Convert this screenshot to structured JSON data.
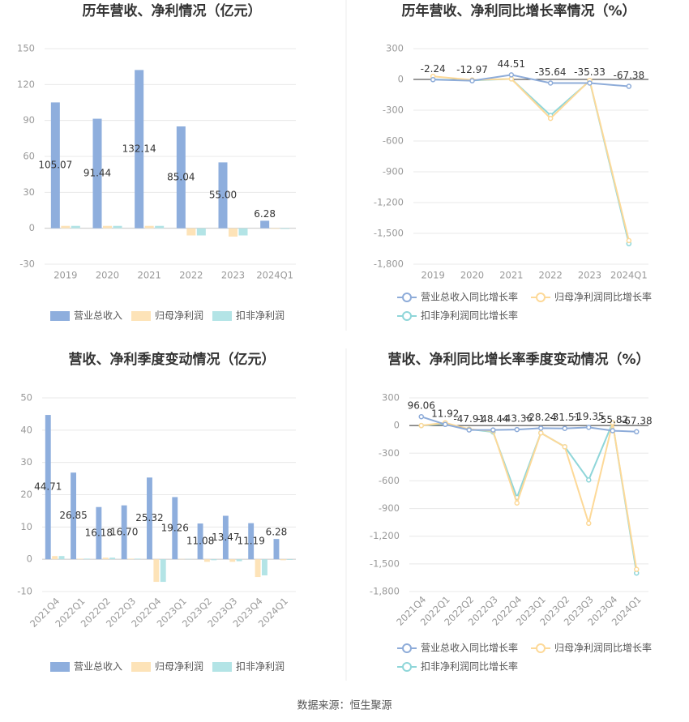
{
  "chart_data": [
    {
      "type": "bar",
      "title": "历年营收、净利情况（亿元）",
      "categories": [
        "2019",
        "2020",
        "2021",
        "2022",
        "2023",
        "2024Q1"
      ],
      "series": [
        {
          "name": "营业总收入",
          "color": "#8eaedd",
          "values": [
            105.07,
            91.44,
            132.14,
            85.04,
            55.0,
            6.28
          ],
          "value_labels": [
            "105.07",
            "91.44",
            "132.14",
            "85.04",
            "55.00",
            "6.28"
          ]
        },
        {
          "name": "归母净利润",
          "color": "#fde3b8",
          "values": [
            2,
            2,
            2,
            -6,
            -7,
            -0.5
          ]
        },
        {
          "name": "扣非净利润",
          "color": "#b3e4e6",
          "values": [
            2,
            2,
            2,
            -6,
            -6,
            -0.6
          ]
        }
      ],
      "ylim": [
        -30,
        150
      ],
      "yticks": [
        -30,
        0,
        30,
        60,
        90,
        120,
        150
      ],
      "grid": true
    },
    {
      "type": "line",
      "title": "历年营收、净利同比增长率情况（%）",
      "categories": [
        "2019",
        "2020",
        "2021",
        "2022",
        "2023",
        "2024Q1"
      ],
      "series": [
        {
          "name": "营业总收入同比增长率",
          "color": "#8eacd9",
          "values": [
            -2.24,
            -12.97,
            44.51,
            -35.64,
            -35.33,
            -67.38
          ],
          "data_labels": true
        },
        {
          "name": "归母净利润同比增长率",
          "color": "#fdd998",
          "values": [
            30,
            -5,
            5,
            -380,
            -10,
            -1570
          ]
        },
        {
          "name": "扣非净利润同比增长率",
          "color": "#8fd6d9",
          "values": [
            0,
            -10,
            5,
            -350,
            -15,
            -1600
          ]
        }
      ],
      "ylim": [
        -1800,
        300
      ],
      "yticks": [
        {
          "value": -1800,
          "label": "-1,800"
        },
        {
          "value": -1500,
          "label": "-1,500"
        },
        {
          "value": -1200,
          "label": "-1,200"
        },
        -900,
        -600,
        -300,
        0,
        300
      ],
      "grid": true
    },
    {
      "type": "bar",
      "title": "营收、净利季度变动情况（亿元）",
      "categories": [
        "2021Q4",
        "2022Q1",
        "2022Q2",
        "2022Q3",
        "2022Q4",
        "2023Q1",
        "2023Q2",
        "2023Q3",
        "2023Q4",
        "2024Q1"
      ],
      "series": [
        {
          "name": "营业总收入",
          "color": "#8eaedd",
          "values": [
            44.71,
            26.85,
            16.18,
            16.7,
            25.32,
            19.26,
            11.08,
            13.47,
            11.19,
            6.28
          ],
          "value_labels": [
            "44.71",
            "26.85",
            "16.18",
            "16.70",
            "25.32",
            "19.26",
            "11.08",
            "13.47",
            "11.19",
            "6.28"
          ]
        },
        {
          "name": "归母净利润",
          "color": "#fde3b8",
          "values": [
            1,
            0.2,
            0.5,
            0.2,
            -7,
            0.1,
            -0.8,
            -0.8,
            -5.5,
            -0.3
          ]
        },
        {
          "name": "扣非净利润",
          "color": "#b3e4e6",
          "values": [
            1,
            0.2,
            0.5,
            0.2,
            -7,
            0.1,
            -0.3,
            -0.6,
            -5,
            -0.2
          ]
        }
      ],
      "ylim": [
        -10,
        50
      ],
      "yticks": [
        -10,
        0,
        10,
        20,
        30,
        40,
        50
      ],
      "grid": true
    },
    {
      "type": "line",
      "title": "营收、净利同比增长率季度变动情况（%）",
      "categories": [
        "2021Q4",
        "2022Q1",
        "2022Q2",
        "2022Q3",
        "2022Q4",
        "2023Q1",
        "2023Q2",
        "2023Q3",
        "2023Q4",
        "2024Q1"
      ],
      "series": [
        {
          "name": "营业总收入同比增长率",
          "color": "#8eacd9",
          "values": [
            96.06,
            11.92,
            -47.91,
            -48.44,
            -43.36,
            -28.24,
            -31.51,
            -19.35,
            -55.82,
            -67.38
          ],
          "data_labels": true
        },
        {
          "name": "归母净利润同比增长率",
          "color": "#fdd998",
          "values": [
            0,
            30,
            -40,
            -60,
            -840,
            -80,
            -230,
            -1060,
            30,
            -1560
          ]
        },
        {
          "name": "扣非净利润同比增长率",
          "color": "#8fd6d9",
          "values": [
            0,
            20,
            -40,
            -70,
            -780,
            -80,
            -230,
            -590,
            30,
            -1600
          ]
        }
      ],
      "ylim": [
        -1800,
        300
      ],
      "yticks": [
        {
          "value": -1800,
          "label": "-1,800"
        },
        {
          "value": -1500,
          "label": "-1,500"
        },
        {
          "value": -1200,
          "label": "-1,200"
        },
        -900,
        -600,
        -300,
        0,
        300
      ],
      "grid": true
    }
  ],
  "footer": {
    "source": "数据来源：恒生聚源"
  }
}
